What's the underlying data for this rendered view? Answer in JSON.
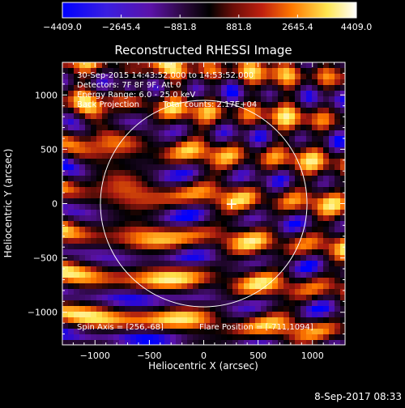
{
  "chart_data": {
    "type": "heatmap",
    "title": "Reconstructed RHESSI Image",
    "xlabel": "Heliocentric X (arcsec)",
    "ylabel": "Heliocentric Y (arcsec)",
    "xlim": [
      -1300,
      1300
    ],
    "ylim": [
      -1300,
      1300
    ],
    "x_ticks": [
      -1000,
      -500,
      0,
      500,
      1000
    ],
    "y_ticks": [
      -1000,
      -500,
      0,
      500,
      1000
    ],
    "x_tick_labels": [
      "−1000",
      "−500",
      "0",
      "500",
      "1000"
    ],
    "y_tick_labels": [
      "−1000",
      "−500",
      "0",
      "500",
      "1000"
    ],
    "colorbar": {
      "ticks": [
        -4409.0,
        -2645.4,
        -881.8,
        881.8,
        2645.4,
        4409.0
      ],
      "tick_labels": [
        "−4409.0",
        "−2645.4",
        "−881.8",
        "881.8",
        "2645.4",
        "4409.0"
      ],
      "range": [
        -4409.0,
        4409.0
      ]
    },
    "annotations": {
      "time_range": "30-Sep-2015 14:43:52.000 to 14:53:52.000",
      "detectors": "Detectors: 7F 8F 9F, Att 0",
      "energy": "Energy Range: 6.0 - 25.0 keV",
      "method": "Back Projection",
      "counts": "Total counts: 2.17E+04",
      "spin_axis": "Spin Axis = [256,-68]",
      "flare_position": "Flare Position = [-711,1094]"
    },
    "solar_limb_radius_arcsec": 950,
    "marker_position": [
      256,
      -5
    ]
  },
  "footer": {
    "date": "8-Sep-2017 08:33"
  },
  "colors": {
    "background": "#000000",
    "colormap": [
      "#0000ff",
      "#5b12a8",
      "#280838",
      "#000000",
      "#a81a10",
      "#ff7800",
      "#ffe650",
      "#ffffff"
    ]
  }
}
